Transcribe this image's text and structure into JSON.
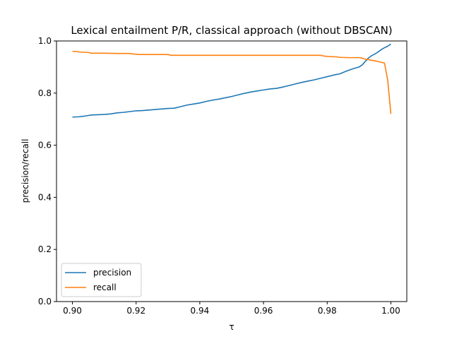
{
  "chart_data": {
    "type": "line",
    "title": "Lexical entailment P/R, classical approach (without DBSCAN)",
    "xlabel": "τ",
    "ylabel": "precision/recall",
    "xlim": [
      0.895,
      1.005
    ],
    "ylim": [
      0.0,
      1.0
    ],
    "xticks": [
      0.9,
      0.92,
      0.94,
      0.96,
      0.98,
      1.0
    ],
    "xtick_labels": [
      "0.90",
      "0.92",
      "0.94",
      "0.96",
      "0.98",
      "1.00"
    ],
    "yticks": [
      0.0,
      0.2,
      0.4,
      0.6,
      0.8,
      1.0
    ],
    "ytick_labels": [
      "0.0",
      "0.2",
      "0.4",
      "0.6",
      "0.8",
      "1.0"
    ],
    "grid": false,
    "legend_position": "lower-left",
    "series": [
      {
        "name": "precision",
        "color": "#1f77b4",
        "x": [
          0.9,
          0.902,
          0.904,
          0.906,
          0.908,
          0.91,
          0.912,
          0.914,
          0.916,
          0.918,
          0.92,
          0.922,
          0.924,
          0.926,
          0.928,
          0.93,
          0.932,
          0.934,
          0.936,
          0.938,
          0.94,
          0.942,
          0.944,
          0.946,
          0.948,
          0.95,
          0.952,
          0.954,
          0.956,
          0.958,
          0.96,
          0.962,
          0.964,
          0.966,
          0.968,
          0.97,
          0.972,
          0.974,
          0.976,
          0.978,
          0.98,
          0.982,
          0.984,
          0.986,
          0.988,
          0.99,
          0.991,
          0.992,
          0.993,
          0.994,
          0.995,
          0.996,
          0.997,
          0.998,
          0.999,
          1.0
        ],
        "y": [
          0.708,
          0.709,
          0.712,
          0.716,
          0.717,
          0.718,
          0.72,
          0.724,
          0.726,
          0.729,
          0.732,
          0.733,
          0.735,
          0.737,
          0.739,
          0.741,
          0.742,
          0.748,
          0.754,
          0.758,
          0.762,
          0.768,
          0.773,
          0.777,
          0.782,
          0.787,
          0.793,
          0.799,
          0.804,
          0.808,
          0.812,
          0.816,
          0.818,
          0.823,
          0.829,
          0.835,
          0.841,
          0.846,
          0.851,
          0.857,
          0.863,
          0.869,
          0.874,
          0.884,
          0.893,
          0.9,
          0.908,
          0.922,
          0.935,
          0.944,
          0.95,
          0.958,
          0.967,
          0.974,
          0.98,
          0.988
        ]
      },
      {
        "name": "recall",
        "color": "#ff7f0e",
        "x": [
          0.9,
          0.901,
          0.902,
          0.903,
          0.905,
          0.906,
          0.91,
          0.914,
          0.918,
          0.919,
          0.921,
          0.925,
          0.93,
          0.931,
          0.935,
          0.94,
          0.95,
          0.96,
          0.97,
          0.978,
          0.979,
          0.981,
          0.983,
          0.984,
          0.987,
          0.99,
          0.991,
          0.992,
          0.993,
          0.995,
          0.997,
          0.998,
          0.999,
          1.0
        ],
        "y": [
          0.96,
          0.96,
          0.958,
          0.957,
          0.956,
          0.953,
          0.953,
          0.952,
          0.952,
          0.95,
          0.948,
          0.948,
          0.948,
          0.945,
          0.945,
          0.945,
          0.945,
          0.945,
          0.945,
          0.945,
          0.942,
          0.94,
          0.939,
          0.937,
          0.936,
          0.936,
          0.934,
          0.93,
          0.928,
          0.924,
          0.918,
          0.915,
          0.85,
          0.72
        ]
      }
    ]
  }
}
